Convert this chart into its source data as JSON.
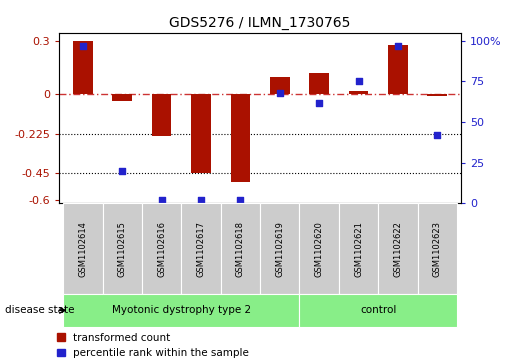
{
  "title": "GDS5276 / ILMN_1730765",
  "samples": [
    "GSM1102614",
    "GSM1102615",
    "GSM1102616",
    "GSM1102617",
    "GSM1102618",
    "GSM1102619",
    "GSM1102620",
    "GSM1102621",
    "GSM1102622",
    "GSM1102623"
  ],
  "red_values": [
    0.3,
    -0.04,
    -0.24,
    -0.45,
    -0.5,
    0.1,
    0.12,
    0.02,
    0.28,
    -0.01
  ],
  "blue_values": [
    97,
    20,
    2,
    2,
    2,
    68,
    62,
    75,
    97,
    42
  ],
  "ylim_left": [
    -0.62,
    0.35
  ],
  "ylim_right": [
    0,
    105
  ],
  "yticks_left": [
    0.3,
    0,
    -0.225,
    -0.45,
    -0.6
  ],
  "yticks_right": [
    100,
    75,
    50,
    25,
    0
  ],
  "hlines": [
    -0.225,
    -0.45
  ],
  "group_ranges": [
    [
      0,
      5,
      "Myotonic dystrophy type 2"
    ],
    [
      6,
      9,
      "control"
    ]
  ],
  "disease_label": "disease state",
  "red_color": "#aa1100",
  "blue_color": "#2222cc",
  "zero_line_color": "#cc3333",
  "dotted_line_color": "#000000",
  "bar_width": 0.5,
  "legend_items": [
    "transformed count",
    "percentile rank within the sample"
  ],
  "bg_color": "#ffffff",
  "sample_box_color": "#cccccc",
  "disease_box_color": "#88ee88"
}
